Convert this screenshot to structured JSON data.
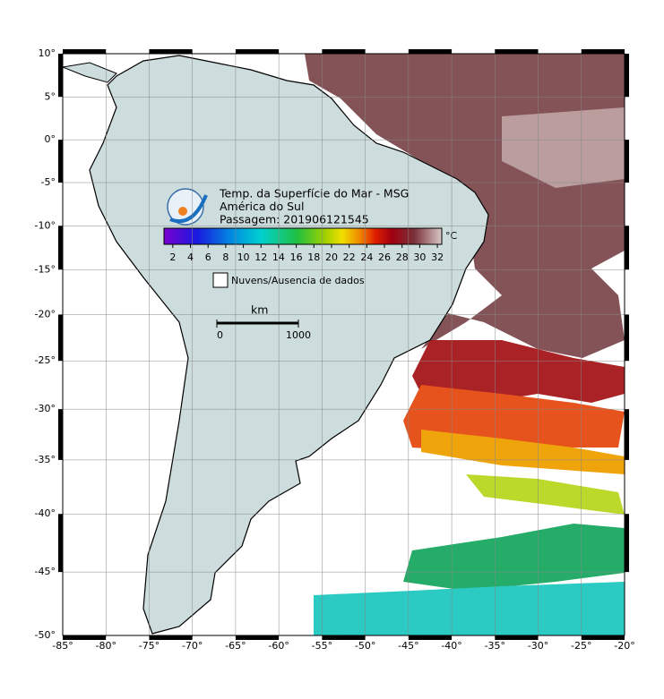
{
  "map": {
    "title_lines": [
      "Temp. da Superfície do Mar - MSG",
      "América do Sul",
      "Passagem: 201906121545"
    ],
    "xlim": [
      -85,
      -20
    ],
    "ylim": [
      -50,
      10
    ],
    "xticks": [
      {
        "value": -85,
        "label": "-85°"
      },
      {
        "value": -80,
        "label": "-80°"
      },
      {
        "value": -75,
        "label": "-75°"
      },
      {
        "value": -70,
        "label": "-70°"
      },
      {
        "value": -65,
        "label": "-65°"
      },
      {
        "value": -60,
        "label": "-60°"
      },
      {
        "value": -55,
        "label": "-55°"
      },
      {
        "value": -50,
        "label": "-50°"
      },
      {
        "value": -45,
        "label": "-45°"
      },
      {
        "value": -40,
        "label": "-40°"
      },
      {
        "value": -35,
        "label": "-35°"
      },
      {
        "value": -30,
        "label": "-30°"
      },
      {
        "value": -25,
        "label": "-25°"
      },
      {
        "value": -20,
        "label": "-20°"
      }
    ],
    "yticks": [
      {
        "value": 10,
        "label": "10°"
      },
      {
        "value": 5,
        "label": "5°"
      },
      {
        "value": 0,
        "label": "0°"
      },
      {
        "value": -5,
        "label": "-5°"
      },
      {
        "value": -10,
        "label": "-10°"
      },
      {
        "value": -15,
        "label": "-15°"
      },
      {
        "value": -20,
        "label": "-20°"
      },
      {
        "value": -25,
        "label": "-25°"
      },
      {
        "value": -30,
        "label": "-30°"
      },
      {
        "value": -35,
        "label": "-35°"
      },
      {
        "value": -40,
        "label": "-40°"
      },
      {
        "value": -45,
        "label": "-45°"
      },
      {
        "value": -50,
        "label": "-50°"
      }
    ],
    "colorbar": {
      "unit": "°C",
      "lim": [
        1,
        32.5
      ],
      "ticks": [
        2,
        4,
        6,
        8,
        10,
        12,
        14,
        16,
        18,
        20,
        22,
        24,
        26,
        28,
        30,
        32
      ]
    },
    "legend": "Nuvens/Ausencia de dados",
    "scale": {
      "unit": "km",
      "ticks": [
        0,
        1000
      ]
    }
  }
}
